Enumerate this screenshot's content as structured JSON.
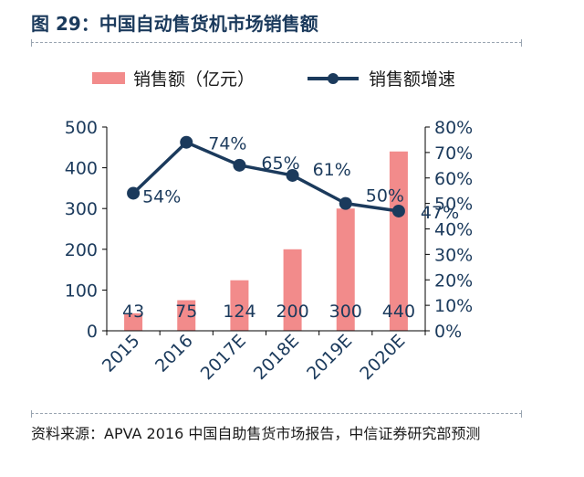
{
  "figure": {
    "title": "图 29：中国自动售货机市场销售额",
    "source_note": "资料来源：APVA 2016 中国自助售货市场报告，中信证券研究部预测"
  },
  "colors": {
    "bar": "#f28b8b",
    "line": "#1b3a5c",
    "axis_text": "#1b3a5c",
    "title": "#1b3a5c"
  },
  "chart_data": {
    "type": "bar",
    "categories": [
      "2015",
      "2016",
      "2017E",
      "2018E",
      "2019E",
      "2020E"
    ],
    "series": [
      {
        "name": "销售额（亿元）",
        "type": "bar",
        "axis": "left",
        "values": [
          43,
          75,
          124,
          200,
          300,
          440
        ],
        "data_labels": [
          "43",
          "75",
          "124",
          "200",
          "300",
          "440"
        ]
      },
      {
        "name": "销售额增速",
        "type": "line",
        "axis": "right",
        "values": [
          54,
          74,
          65,
          61,
          50,
          47
        ],
        "data_labels": [
          "54%",
          "74%",
          "65%",
          "61%",
          "50%",
          "47%"
        ]
      }
    ],
    "y_left": {
      "ylim": [
        0,
        500
      ],
      "ticks": [
        "0",
        "100",
        "200",
        "300",
        "400",
        "500"
      ]
    },
    "y_right": {
      "ylim": [
        0,
        80
      ],
      "ticks": [
        "0%",
        "10%",
        "20%",
        "30%",
        "40%",
        "50%",
        "60%",
        "70%",
        "80%"
      ]
    },
    "legend_position": "top",
    "grid": false
  }
}
